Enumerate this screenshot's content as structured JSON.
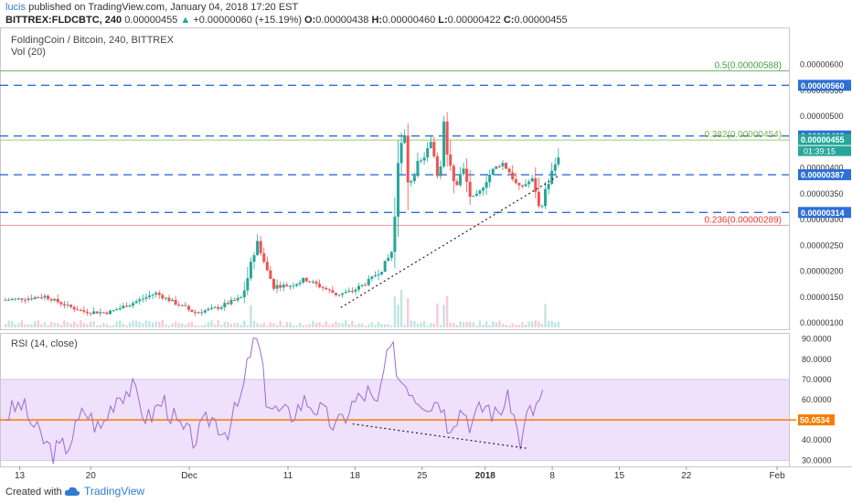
{
  "header": {
    "author": "lucis",
    "published_text": "published on TradingView.com, January 04, 2018 17:20 EST",
    "symbol": "BITTREX:FLDCBTC, 240",
    "last": "0.00000455",
    "change": "+0.00000060 (+15.19%)",
    "o_label": "O:",
    "o": "0.00000438",
    "h_label": "H:",
    "h": "0.00000460",
    "l_label": "L:",
    "l": "0.00000422",
    "c_label": "C:",
    "c": "0.00000455"
  },
  "main": {
    "title": "FoldingCoin / Bitcoin, 240, BITTREX",
    "vol_label": "Vol (20)",
    "countdown": "01:39:15"
  },
  "rsi": {
    "title": "RSI (14, close)"
  },
  "footer": {
    "created_with": "Created with",
    "brand": "TradingView"
  },
  "colors": {
    "up": "#26a69a",
    "down": "#ef5350",
    "dashed": "#2e6fd6",
    "fib_green": "#4caf50",
    "fib_red": "#e53935",
    "rsi_line": "#9c6bcf",
    "rsi_band": "#efe0fb",
    "rsi_mid": "#f57c00"
  },
  "chart_data": [
    {
      "type": "candlestick",
      "title": "FoldingCoin / Bitcoin, 240, BITTREX",
      "x_ticks": [
        "13",
        "20",
        "Dec",
        "11",
        "18",
        "25",
        "2018",
        "8",
        "15",
        "22",
        "Feb"
      ],
      "y_ticks": [
        "0.00000600",
        "0.00000550",
        "0.00000500",
        "0.00000450",
        "0.00000400",
        "0.00000350",
        "0.00000300",
        "0.00000250",
        "0.00000200",
        "0.00000150",
        "0.00000100"
      ],
      "ylim": [
        8.8e-07,
        6.72e-06
      ],
      "price_levels": [
        {
          "label": "0.00000560",
          "value": 5.6e-06,
          "style": "dashed"
        },
        {
          "label": "0.00000462",
          "value": 4.62e-06,
          "style": "dashed"
        },
        {
          "label": "0.00000455",
          "value": 4.55e-06,
          "style": "last"
        },
        {
          "label": "0.00000387",
          "value": 3.87e-06,
          "style": "dashed"
        },
        {
          "label": "0.00000314",
          "value": 3.14e-06,
          "style": "dashed"
        }
      ],
      "fib_levels": [
        {
          "label": "0.5(0.00000588)",
          "value": 5.88e-06,
          "color": "green"
        },
        {
          "label": "0.382(0.00000454)",
          "value": 4.54e-06,
          "color": "lime"
        },
        {
          "label": "0.236(0.00000289)",
          "value": 2.89e-06,
          "color": "red"
        }
      ],
      "trendline": {
        "from": [
          0.425,
          1.3e-06
        ],
        "to": [
          0.7,
          3.84e-06
        ]
      },
      "price_path": [
        [
          0.0,
          1.45
        ],
        [
          0.03,
          1.48
        ],
        [
          0.05,
          1.52
        ],
        [
          0.08,
          1.32
        ],
        [
          0.1,
          1.22
        ],
        [
          0.13,
          1.2
        ],
        [
          0.16,
          1.38
        ],
        [
          0.19,
          1.58
        ],
        [
          0.21,
          1.43
        ],
        [
          0.24,
          1.2
        ],
        [
          0.27,
          1.3
        ],
        [
          0.3,
          1.5
        ],
        [
          0.32,
          2.6
        ],
        [
          0.33,
          2.05
        ],
        [
          0.34,
          1.72
        ],
        [
          0.36,
          1.72
        ],
        [
          0.38,
          1.85
        ],
        [
          0.4,
          1.7
        ],
        [
          0.42,
          1.55
        ],
        [
          0.44,
          1.62
        ],
        [
          0.46,
          1.8
        ],
        [
          0.48,
          2.1
        ],
        [
          0.49,
          2.4
        ],
        [
          0.495,
          3.3
        ],
        [
          0.5,
          4.4
        ],
        [
          0.505,
          4.8
        ],
        [
          0.51,
          3.6
        ],
        [
          0.52,
          4.0
        ],
        [
          0.53,
          4.2
        ],
        [
          0.54,
          4.5
        ],
        [
          0.55,
          3.7
        ],
        [
          0.555,
          4.9
        ],
        [
          0.56,
          4.2
        ],
        [
          0.57,
          3.6
        ],
        [
          0.58,
          4.0
        ],
        [
          0.59,
          3.4
        ],
        [
          0.6,
          3.5
        ],
        [
          0.61,
          3.8
        ],
        [
          0.62,
          4.0
        ],
        [
          0.63,
          4.1
        ],
        [
          0.64,
          3.9
        ],
        [
          0.65,
          3.6
        ],
        [
          0.66,
          3.7
        ],
        [
          0.67,
          3.8
        ],
        [
          0.675,
          3.2
        ],
        [
          0.68,
          3.3
        ],
        [
          0.69,
          3.8
        ],
        [
          0.7,
          4.2
        ],
        [
          0.705,
          4.55
        ]
      ]
    },
    {
      "type": "line",
      "title": "RSI (14, close)",
      "y_ticks": [
        "90.0000",
        "80.0000",
        "70.0000",
        "60.0000",
        "50.0000",
        "40.0000",
        "30.0000"
      ],
      "ylim": [
        27,
        93
      ],
      "band": [
        30,
        70
      ],
      "midline": 50,
      "last_value": "50.0534",
      "trendline": {
        "from": [
          0.44,
          48
        ],
        "to": [
          0.66,
          36
        ]
      },
      "values_path": [
        [
          0.0,
          52
        ],
        [
          0.02,
          58
        ],
        [
          0.04,
          44
        ],
        [
          0.06,
          34
        ],
        [
          0.08,
          38
        ],
        [
          0.1,
          55
        ],
        [
          0.12,
          45
        ],
        [
          0.14,
          62
        ],
        [
          0.16,
          66
        ],
        [
          0.18,
          50
        ],
        [
          0.2,
          60
        ],
        [
          0.22,
          46
        ],
        [
          0.24,
          40
        ],
        [
          0.26,
          52
        ],
        [
          0.28,
          44
        ],
        [
          0.3,
          62
        ],
        [
          0.31,
          84
        ],
        [
          0.32,
          90
        ],
        [
          0.33,
          62
        ],
        [
          0.34,
          55
        ],
        [
          0.36,
          52
        ],
        [
          0.38,
          60
        ],
        [
          0.4,
          54
        ],
        [
          0.42,
          46
        ],
        [
          0.44,
          58
        ],
        [
          0.46,
          64
        ],
        [
          0.47,
          54
        ],
        [
          0.48,
          75
        ],
        [
          0.49,
          86
        ],
        [
          0.5,
          70
        ],
        [
          0.51,
          68
        ],
        [
          0.52,
          62
        ],
        [
          0.53,
          60
        ],
        [
          0.54,
          58
        ],
        [
          0.55,
          62
        ],
        [
          0.56,
          48
        ],
        [
          0.57,
          52
        ],
        [
          0.58,
          56
        ],
        [
          0.59,
          48
        ],
        [
          0.6,
          54
        ],
        [
          0.61,
          58
        ],
        [
          0.62,
          52
        ],
        [
          0.63,
          57
        ],
        [
          0.64,
          60
        ],
        [
          0.65,
          42
        ],
        [
          0.655,
          38
        ],
        [
          0.66,
          52
        ],
        [
          0.67,
          55
        ],
        [
          0.68,
          62
        ],
        [
          0.685,
          65
        ]
      ]
    }
  ]
}
